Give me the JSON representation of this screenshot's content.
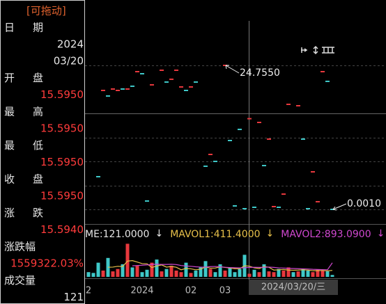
{
  "panel": {
    "drag": "[可拖动]",
    "fields": [
      {
        "label": "日期",
        "lines": [
          "2024",
          "03/20"
        ]
      },
      {
        "label": "开盘",
        "lines": [
          "15.5950"
        ]
      },
      {
        "label": "最高",
        "lines": [
          "15.5950"
        ]
      },
      {
        "label": "最低",
        "lines": [
          "15.5950"
        ]
      },
      {
        "label": "收盘",
        "lines": [
          "15.5950"
        ]
      },
      {
        "label": "涨跌",
        "lines": [
          "15.5940"
        ]
      },
      {
        "label": "涨跌幅",
        "lines": [
          "1559322.03%"
        ]
      },
      {
        "label": "成交量",
        "lines": [
          "121"
        ]
      }
    ]
  },
  "chart_data": [
    {
      "type": "dash",
      "x": [
        "2",
        null,
        null,
        null,
        null,
        null,
        null,
        null,
        null,
        null,
        null,
        "2024",
        null,
        null,
        null,
        null,
        null,
        null,
        null,
        null,
        null,
        "02",
        null,
        null,
        null,
        null,
        null,
        null,
        "03",
        null,
        null,
        null,
        null,
        null,
        null,
        null,
        null,
        null,
        null,
        null,
        null,
        null,
        null,
        null,
        null,
        null,
        null,
        null,
        null,
        null,
        null
      ],
      "series": [
        {
          "color": "#e8383d",
          "values": [
            null,
            null,
            null,
            20.45,
            null,
            20.69,
            20.45,
            null,
            20.69,
            null,
            23.68,
            null,
            null,
            21.41,
            null,
            23.92,
            null,
            22.37,
            23.92,
            21.05,
            null,
            21.05,
            null,
            null,
            null,
            9.45,
            null,
            null,
            24.755,
            null,
            null,
            null,
            null,
            15.595,
            null,
            14.95,
            null,
            12.08,
            0.48,
            null,
            2.63,
            18.06,
            null,
            17.82,
            null,
            null,
            6.46,
            1.32,
            23.68,
            null,
            null
          ]
        },
        {
          "color": "#3fc9c9",
          "values": [
            null,
            null,
            5.62,
            null,
            19.49,
            null,
            null,
            20.69,
            null,
            21.17,
            null,
            23.32,
            1.44,
            null,
            null,
            null,
            21.89,
            null,
            null,
            null,
            20.45,
            null,
            21.89,
            null,
            7.42,
            null,
            8.25,
            null,
            null,
            11.84,
            0.6,
            13.75,
            0.12,
            null,
            0.36,
            null,
            7.53,
            null,
            null,
            0.36,
            null,
            null,
            null,
            null,
            12.08,
            0.12,
            null,
            null,
            null,
            22.01,
            0.001
          ]
        }
      ],
      "ylim": [
        0.001,
        24.755
      ],
      "annotations": [
        {
          "label": "24.7550",
          "value": 24.755
        },
        {
          "label": "0.0010",
          "value": 0.001
        }
      ],
      "crosshair_label": "2024/03/20/三"
    },
    {
      "type": "bar",
      "legend_arrow": "↓",
      "bar_colors": [
        "#e8383d",
        "#3fc9c9"
      ],
      "series": [
        {
          "name": "ME:121.0000",
          "color": "#e6e6e6",
          "values": [
            300,
            250,
            900,
            400,
            1200,
            350,
            500,
            800,
            2100,
            600,
            700,
            300,
            450,
            900,
            1100,
            350,
            500,
            700,
            400,
            300,
            900,
            250,
            400,
            600,
            1000,
            500,
            300,
            800,
            400,
            600,
            300,
            500,
            1400,
            200,
            450,
            300,
            800,
            350,
            300,
            500,
            400,
            600,
            300,
            350,
            500,
            400,
            300,
            450,
            400,
            350,
            121
          ]
        },
        {
          "name": "MAVOL1:411.4000",
          "color": "#e7c04a",
          "values": [
            null,
            null,
            null,
            null,
            610,
            620,
            670,
            650,
            1000,
            1030,
            940,
            840,
            830,
            590,
            690,
            760,
            620,
            660,
            610,
            450,
            540,
            510,
            450,
            490,
            630,
            550,
            560,
            640,
            600,
            560,
            520,
            520,
            700,
            680,
            570,
            530,
            650,
            610,
            430,
            450,
            470,
            430,
            420,
            430,
            450,
            430,
            390,
            390,
            410,
            380,
            411.4
          ]
        },
        {
          "name": "MAVOL2:893.0900",
          "color": "#d048d0",
          "values": [
            null,
            null,
            null,
            null,
            null,
            null,
            null,
            null,
            null,
            700,
            720,
            740,
            760,
            790,
            800,
            790,
            790,
            800,
            780,
            720,
            690,
            670,
            640,
            620,
            620,
            650,
            660,
            640,
            610,
            590,
            580,
            570,
            580,
            600,
            610,
            600,
            610,
            620,
            600,
            570,
            560,
            540,
            530,
            520,
            510,
            500,
            480,
            470,
            460,
            450,
            893.09
          ]
        }
      ],
      "ylim": [
        0,
        3000
      ]
    }
  ]
}
